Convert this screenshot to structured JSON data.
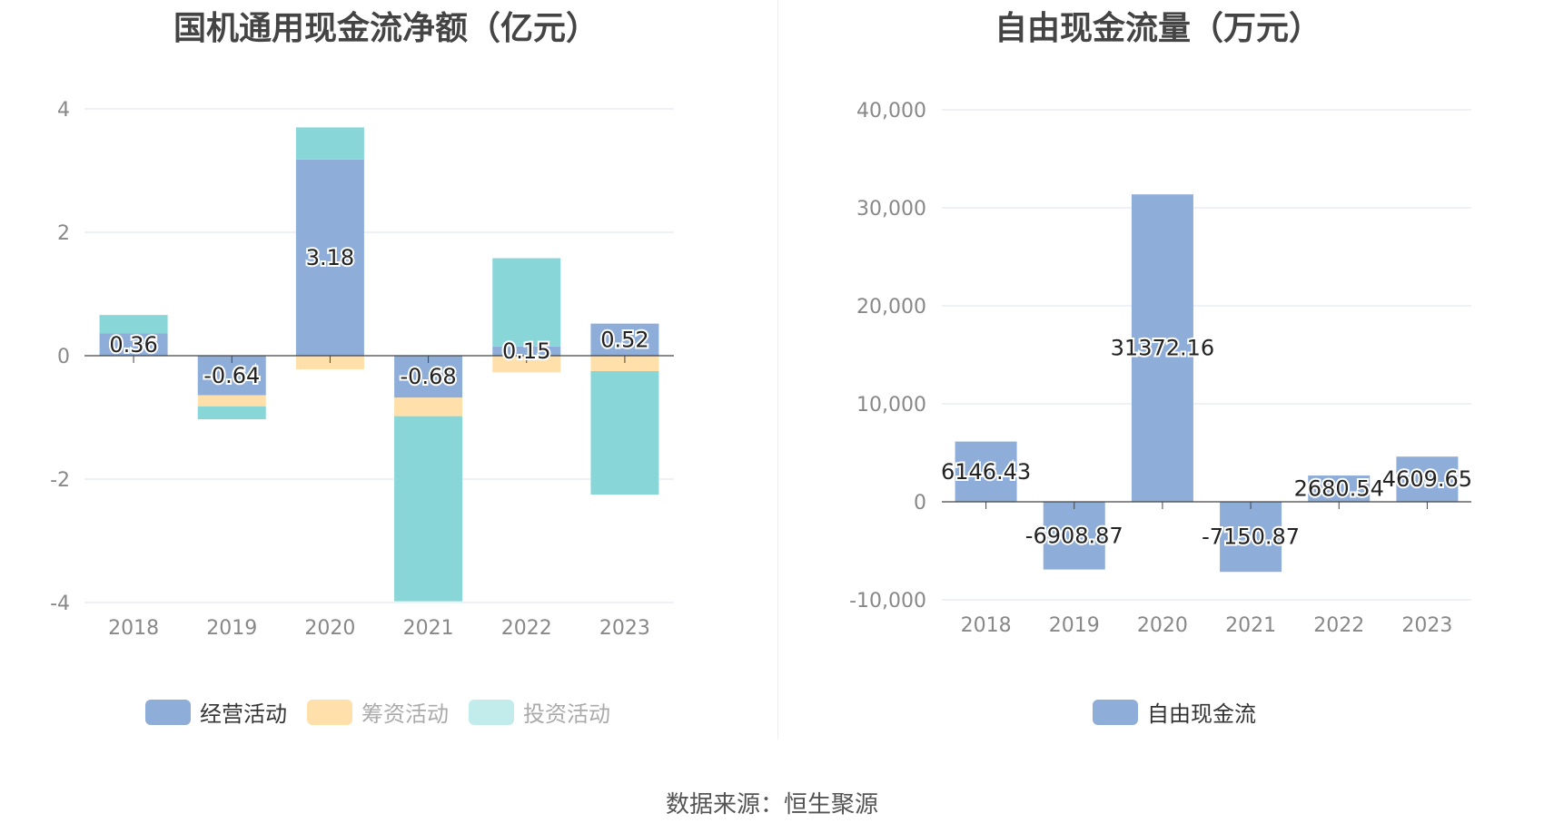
{
  "charts": {
    "left_title": "国机通用现金流净额（亿元）",
    "right_title": "自由现金流量（万元）"
  },
  "source_text": "数据来源：恒生聚源",
  "colors": {
    "operating": "#8fadd9",
    "financing": "#ffe0aa",
    "investing": "#88d6d8",
    "investing_legend": "#c2ecec",
    "free_cash_flow": "#8fadd9",
    "grid": "#dde4f1",
    "axis": "#444444",
    "tick_text": "#888888"
  },
  "chart_data": [
    {
      "type": "bar",
      "stacked": true,
      "title": "国机通用现金流净额（亿元）",
      "categories": [
        "2018",
        "2019",
        "2020",
        "2021",
        "2022",
        "2023"
      ],
      "series": [
        {
          "name": "经营活动",
          "values": [
            0.36,
            -0.64,
            3.18,
            -0.68,
            0.15,
            0.52
          ],
          "data_labels": [
            "0.36",
            "-0.64",
            "3.18",
            "-0.68",
            "0.15",
            "0.52"
          ]
        },
        {
          "name": "筹资活动",
          "values": [
            0.0,
            -0.18,
            -0.22,
            -0.3,
            -0.27,
            -0.25
          ]
        },
        {
          "name": "投资活动",
          "values": [
            0.3,
            -0.21,
            0.52,
            -3.0,
            1.43,
            -2.0
          ]
        }
      ],
      "ylim": [
        -4,
        4
      ],
      "yticks": [
        -4,
        -2,
        0,
        2,
        4
      ],
      "grid": true,
      "legend_position": "bottom"
    },
    {
      "type": "bar",
      "title": "自由现金流量（万元）",
      "categories": [
        "2018",
        "2019",
        "2020",
        "2021",
        "2022",
        "2023"
      ],
      "series": [
        {
          "name": "自由现金流",
          "values": [
            6146.43,
            -6908.87,
            31372.16,
            -7150.87,
            2680.54,
            4609.65
          ],
          "data_labels": [
            "6146.43",
            "-6908.87",
            "31372.16",
            "-7150.87",
            "2680.54",
            "4609.65"
          ]
        }
      ],
      "ylim": [
        -10000,
        40000
      ],
      "yticks": [
        -10000,
        0,
        10000,
        20000,
        30000,
        40000
      ],
      "ytick_labels": [
        "-10,000",
        "0",
        "10,000",
        "20,000",
        "30,000",
        "40,000"
      ],
      "grid": true,
      "legend_position": "bottom"
    }
  ]
}
